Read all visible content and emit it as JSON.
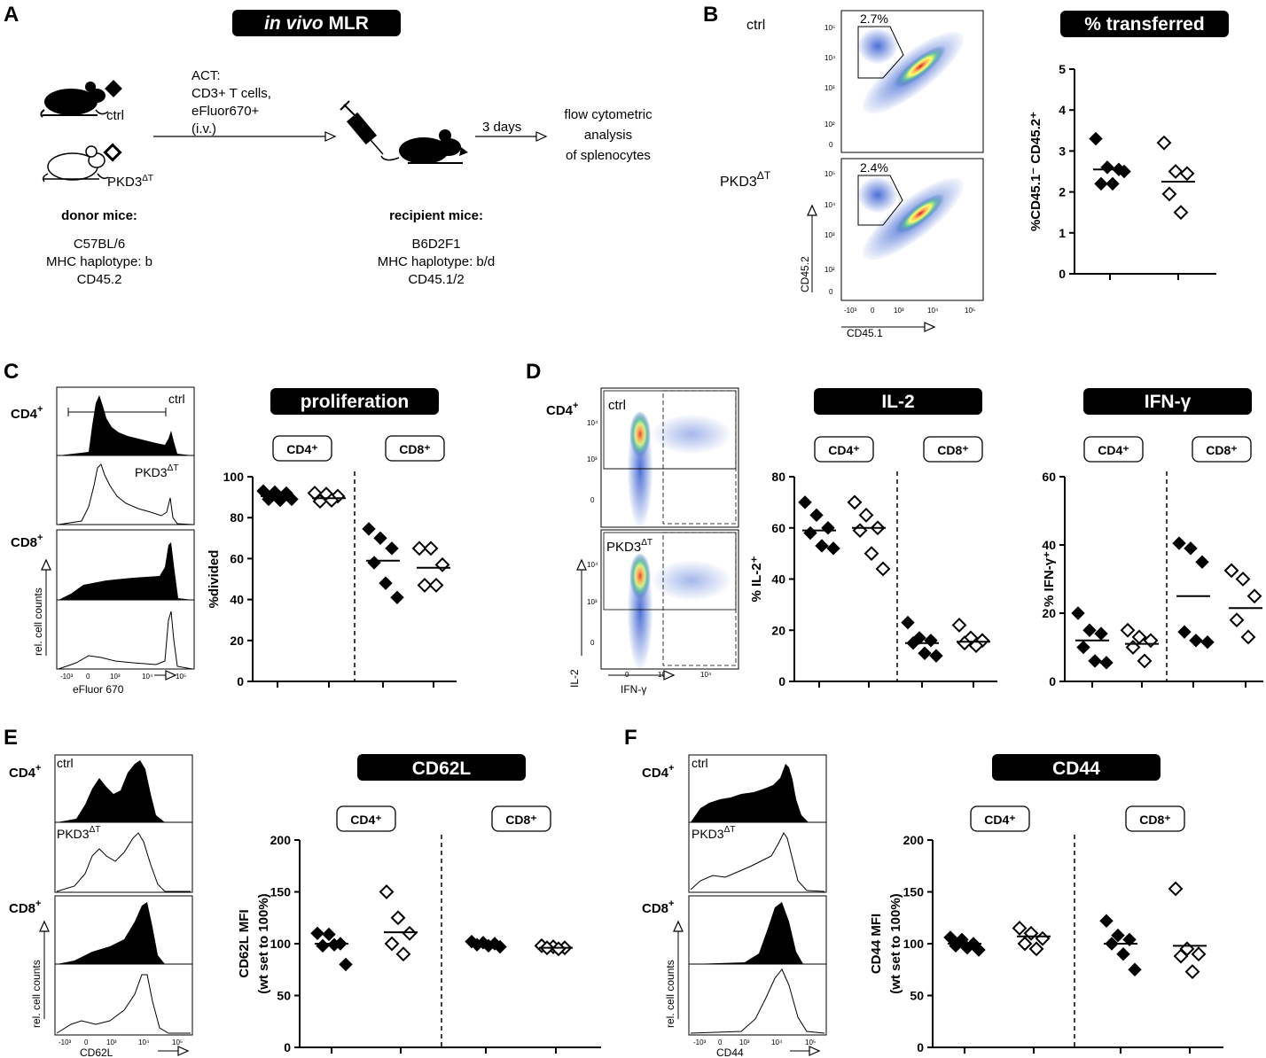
{
  "panels": {
    "A": {
      "letter": "A",
      "title_italic": "in vivo",
      "title_rest": "MLR",
      "act_lines": [
        "ACT:",
        "CD3+ T cells,",
        "eFluor670+",
        "(i.v.)"
      ],
      "days": "3 days",
      "analysis_lines": [
        "flow cytometric",
        "analysis",
        "of splenocytes"
      ],
      "ctrl_label": "ctrl",
      "ko_label": "PKD3",
      "ko_sup": "ΔT",
      "donor": {
        "heading": "donor mice:",
        "lines": [
          "C57BL/6",
          "MHC haplotype: b",
          "CD45.2"
        ]
      },
      "recipient": {
        "heading": "recipient mice:",
        "lines": [
          "B6D2F1",
          "MHC haplotype: b/d",
          "CD45.1/2"
        ]
      }
    },
    "B": {
      "letter": "B",
      "ctrl_label": "ctrl",
      "ko_label": "PKD3",
      "ko_sup": "ΔT",
      "gate_ctrl": "2.7%",
      "gate_ko": "2.4%",
      "y_axis": "CD45.2",
      "x_axis": "CD45.1",
      "title": "% transferred"
    },
    "C": {
      "letter": "C",
      "cd4": "CD4",
      "cd8": "CD8",
      "plus": "+",
      "ctrl_label": "ctrl",
      "ko_label": "PKD3",
      "ko_sup": "ΔT",
      "y_axis": "rel. cell counts",
      "x_axis": "eFluor 670",
      "title": "proliferation"
    },
    "D": {
      "letter": "D",
      "cd4": "CD4",
      "plus": "+",
      "ctrl_label": "ctrl",
      "ko_label": "PKD3",
      "ko_sup": "ΔT",
      "y_axis": "IL-2",
      "x_axis": "IFN-γ",
      "title_il2": "IL-2",
      "title_ifn": "IFN-γ"
    },
    "E": {
      "letter": "E",
      "cd4": "CD4",
      "cd8": "CD8",
      "plus": "+",
      "ctrl_label": "ctrl",
      "ko_label": "PKD3",
      "ko_sup": "ΔT",
      "y_axis": "rel. cell counts",
      "x_axis": "CD62L",
      "title": "CD62L"
    },
    "F": {
      "letter": "F",
      "cd4": "CD4",
      "cd8": "CD8",
      "plus": "+",
      "ctrl_label": "ctrl",
      "ko_label": "PKD3",
      "ko_sup": "ΔT",
      "y_axis": "rel. cell counts",
      "x_axis": "CD44",
      "title": "CD44"
    }
  },
  "flow_ticks": {
    "log_top": [
      "10⁵",
      "10⁴",
      "10³",
      "10²",
      "0"
    ],
    "log_bottom": [
      "-10³",
      "0",
      "10³",
      "10⁴",
      "10⁵"
    ]
  },
  "chart_data": [
    {
      "id": "transferred",
      "type": "scatter",
      "title": "% transferred",
      "ylabel": "%CD45.1⁻ CD45.2⁺",
      "ylim": [
        0,
        5
      ],
      "yticks": [
        0,
        1,
        2,
        3,
        4,
        5
      ],
      "groups": [
        {
          "name": "ctrl",
          "filled": true,
          "mean": 2.55,
          "values": [
            3.3,
            2.6,
            2.55,
            2.2,
            2.2,
            2.5
          ]
        },
        {
          "name": "PKD3ΔT",
          "filled": false,
          "mean": 2.25,
          "values": [
            3.2,
            2.5,
            2.45,
            1.95,
            1.5
          ]
        }
      ]
    },
    {
      "id": "proliferation",
      "type": "scatter",
      "title": "proliferation",
      "ylabel": "%divided",
      "ylim": [
        0,
        100
      ],
      "yticks": [
        0,
        20,
        40,
        60,
        80,
        100
      ],
      "subgroups": [
        "CD4⁺",
        "CD8⁺"
      ],
      "groups": [
        {
          "name": "ctrl",
          "subgroup": "CD4⁺",
          "filled": true,
          "mean": 90.5,
          "values": [
            93,
            92.5,
            92,
            89,
            88.5,
            89
          ]
        },
        {
          "name": "PKD3ΔT",
          "subgroup": "CD4⁺",
          "filled": false,
          "mean": 89.5,
          "values": [
            92,
            91.5,
            90.5,
            88,
            88.5
          ]
        },
        {
          "name": "ctrl",
          "subgroup": "CD8⁺",
          "filled": true,
          "mean": 59,
          "values": [
            74.5,
            70,
            65,
            58,
            48,
            41
          ]
        },
        {
          "name": "PKD3ΔT",
          "subgroup": "CD8⁺",
          "filled": false,
          "mean": 55.5,
          "values": [
            65,
            65,
            57,
            47,
            47
          ]
        }
      ]
    },
    {
      "id": "il2",
      "type": "scatter",
      "title": "IL-2",
      "ylabel": "% IL-2⁺",
      "ylim": [
        0,
        80
      ],
      "yticks": [
        0,
        20,
        40,
        60,
        80
      ],
      "subgroups": [
        "CD4⁺",
        "CD8⁺"
      ],
      "groups": [
        {
          "name": "ctrl",
          "subgroup": "CD4⁺",
          "filled": true,
          "mean": 59,
          "values": [
            70,
            65,
            60,
            58,
            53,
            52
          ]
        },
        {
          "name": "PKD3ΔT",
          "subgroup": "CD4⁺",
          "filled": false,
          "mean": 60,
          "values": [
            70,
            65,
            60,
            59,
            50,
            44
          ]
        },
        {
          "name": "ctrl",
          "subgroup": "CD8⁺",
          "filled": true,
          "mean": 15,
          "values": [
            23,
            17,
            16,
            15,
            11,
            10
          ]
        },
        {
          "name": "PKD3ΔT",
          "subgroup": "CD8⁺",
          "filled": false,
          "mean": 15.5,
          "values": [
            22,
            17,
            16,
            15,
            14
          ]
        }
      ]
    },
    {
      "id": "ifng",
      "type": "scatter",
      "title": "IFN-γ",
      "ylabel": "% IFN-γ⁺",
      "ylim": [
        0,
        60
      ],
      "yticks": [
        0,
        20,
        40,
        60
      ],
      "subgroups": [
        "CD4⁺",
        "CD8⁺"
      ],
      "groups": [
        {
          "name": "ctrl",
          "subgroup": "CD4⁺",
          "filled": true,
          "mean": 12,
          "values": [
            20,
            15,
            14,
            10,
            6,
            5.5
          ]
        },
        {
          "name": "PKD3ΔT",
          "subgroup": "CD4⁺",
          "filled": false,
          "mean": 11,
          "values": [
            15,
            13,
            12,
            10,
            6
          ]
        },
        {
          "name": "ctrl",
          "subgroup": "CD8⁺",
          "filled": true,
          "mean": 25,
          "values": [
            40.5,
            39,
            35,
            14.5,
            12,
            11.5
          ]
        },
        {
          "name": "PKD3ΔT",
          "subgroup": "CD8⁺",
          "filled": false,
          "mean": 21.5,
          "values": [
            32.5,
            30,
            25,
            18,
            13
          ]
        }
      ]
    },
    {
      "id": "cd62l",
      "type": "scatter",
      "title": "CD62L",
      "ylabel": "CD62L MFI",
      "ylabel2": "(wt set to 100%)",
      "ylim": [
        0,
        200
      ],
      "yticks": [
        0,
        50,
        100,
        150,
        200
      ],
      "subgroups": [
        "CD4⁺",
        "CD8⁺"
      ],
      "groups": [
        {
          "name": "ctrl",
          "subgroup": "CD4⁺",
          "filled": true,
          "mean": 100,
          "values": [
            110,
            109,
            100,
            98,
            99,
            80
          ]
        },
        {
          "name": "PKD3ΔT",
          "subgroup": "CD4⁺",
          "filled": false,
          "mean": 111,
          "values": [
            150,
            125,
            110,
            100,
            90
          ]
        },
        {
          "name": "ctrl",
          "subgroup": "CD8⁺",
          "filled": true,
          "mean": 100,
          "values": [
            102,
            101,
            100,
            99,
            98,
            97
          ]
        },
        {
          "name": "PKD3ΔT",
          "subgroup": "CD8⁺",
          "filled": false,
          "mean": 96,
          "values": [
            98,
            97,
            96,
            96,
            95
          ]
        }
      ]
    },
    {
      "id": "cd44",
      "type": "scatter",
      "title": "CD44",
      "ylabel": "CD44 MFI",
      "ylabel2": "(wt set to 100%)",
      "ylim": [
        0,
        200
      ],
      "yticks": [
        0,
        50,
        100,
        150,
        200
      ],
      "subgroups": [
        "CD4⁺",
        "CD8⁺"
      ],
      "groups": [
        {
          "name": "ctrl",
          "subgroup": "CD4⁺",
          "filled": true,
          "mean": 100,
          "values": [
            106,
            104,
            100,
            98,
            96,
            94
          ]
        },
        {
          "name": "PKD3ΔT",
          "subgroup": "CD4⁺",
          "filled": false,
          "mean": 107,
          "values": [
            115,
            110,
            105,
            100,
            95
          ]
        },
        {
          "name": "ctrl",
          "subgroup": "CD8⁺",
          "filled": true,
          "mean": 100,
          "values": [
            122,
            108,
            104,
            100,
            90,
            75
          ]
        },
        {
          "name": "PKD3ΔT",
          "subgroup": "CD8⁺",
          "filled": false,
          "mean": 98,
          "values": [
            153,
            95,
            90,
            88,
            73
          ]
        }
      ]
    }
  ]
}
